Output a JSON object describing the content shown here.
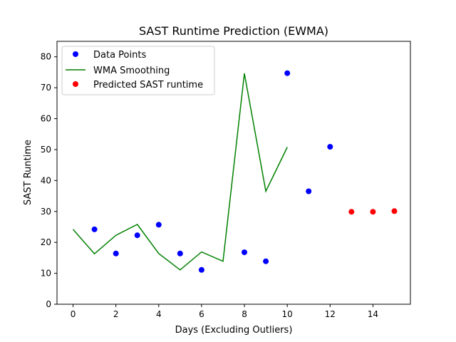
{
  "chart_data": {
    "type": "scatter",
    "title": "SAST Runtime Prediction (EWMA)",
    "xlabel": "Days (Excluding Outliers)",
    "ylabel": "SAST Runtime",
    "xlim": [
      -0.75,
      15.75
    ],
    "ylim": [
      0,
      85
    ],
    "xticks": [
      0,
      2,
      4,
      6,
      8,
      10,
      12,
      14
    ],
    "yticks": [
      0,
      10,
      20,
      30,
      40,
      50,
      60,
      70,
      80
    ],
    "grid": false,
    "legend_position": "upper-left",
    "series": [
      {
        "name": "Data Points",
        "kind": "scatter",
        "color": "#0000ff",
        "points": [
          [
            1,
            24.2
          ],
          [
            2,
            16.4
          ],
          [
            3,
            22.3
          ],
          [
            4,
            25.7
          ],
          [
            5,
            16.4
          ],
          [
            6,
            11.1
          ],
          [
            8,
            16.8
          ],
          [
            9,
            13.9
          ],
          [
            10,
            74.7
          ],
          [
            11,
            36.5
          ],
          [
            12,
            50.9
          ]
        ]
      },
      {
        "name": "WMA Smoothing",
        "kind": "line",
        "color": "#008000",
        "points": [
          [
            0,
            24.2
          ],
          [
            1,
            16.3
          ],
          [
            2,
            22.3
          ],
          [
            3,
            25.8
          ],
          [
            4,
            16.4
          ],
          [
            5,
            11.1
          ],
          [
            6,
            16.9
          ],
          [
            7,
            13.9
          ],
          [
            8,
            74.6
          ],
          [
            9,
            36.5
          ],
          [
            10,
            50.8
          ]
        ]
      },
      {
        "name": "Predicted SAST runtime",
        "kind": "scatter",
        "color": "#ff0000",
        "points": [
          [
            13,
            29.9
          ],
          [
            14,
            29.9
          ],
          [
            15,
            30.1
          ]
        ]
      }
    ]
  }
}
